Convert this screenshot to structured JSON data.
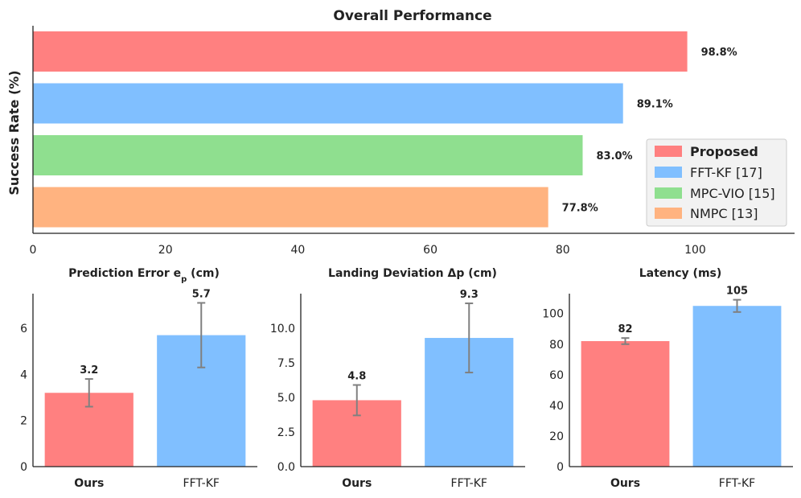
{
  "colors": {
    "proposed": "#ff8080",
    "fftkf": "#80bfff",
    "mpcvio": "#8fdf8f",
    "nmpc": "#ffb380",
    "error_bar": "#808080"
  },
  "chart_data": [
    {
      "type": "bar",
      "orientation": "horizontal",
      "title": "Overall Performance",
      "ylabel": "Success Rate (%)",
      "xlabel": "",
      "categories": [
        "Proposed",
        "FFT-KF [17]",
        "MPC-VIO [15]",
        "NMPC [13]"
      ],
      "values": [
        98.8,
        89.1,
        83.0,
        77.8
      ],
      "value_labels": [
        "98.8%",
        "89.1%",
        "83.0%",
        "77.8%"
      ],
      "xlim": [
        0,
        115
      ],
      "xticks": [
        "0",
        "20",
        "40",
        "60",
        "80",
        "100"
      ],
      "legend": {
        "position": "right",
        "entries": [
          "Proposed",
          "FFT-KF [17]",
          "MPC-VIO [15]",
          "NMPC [13]"
        ]
      }
    },
    {
      "type": "bar",
      "title": "Prediction Error",
      "title_symbol": "e",
      "title_subscript": "p",
      "title_unit": "(cm)",
      "categories": [
        "Ours",
        "FFT-KF"
      ],
      "values": [
        3.2,
        5.7
      ],
      "errors": [
        0.6,
        1.4
      ],
      "value_labels": [
        "3.2",
        "5.7"
      ],
      "ylim": [
        0,
        7.5
      ],
      "yticks": [
        "0",
        "2",
        "4",
        "6"
      ]
    },
    {
      "type": "bar",
      "title": "Landing Deviation",
      "title_symbol": "Δp",
      "title_unit": "(cm)",
      "categories": [
        "Ours",
        "FFT-KF"
      ],
      "values": [
        4.8,
        9.3
      ],
      "errors": [
        1.1,
        2.5
      ],
      "value_labels": [
        "4.8",
        "9.3"
      ],
      "ylim": [
        0,
        12.5
      ],
      "yticks": [
        "0.0",
        "2.5",
        "5.0",
        "7.5",
        "10.0"
      ]
    },
    {
      "type": "bar",
      "title": "Latency (ms)",
      "categories": [
        "Ours",
        "FFT-KF"
      ],
      "values": [
        82,
        105
      ],
      "errors": [
        2,
        4
      ],
      "value_labels": [
        "82",
        "105"
      ],
      "ylim": [
        0,
        113
      ],
      "yticks": [
        "0",
        "20",
        "40",
        "60",
        "80",
        "100"
      ]
    }
  ]
}
